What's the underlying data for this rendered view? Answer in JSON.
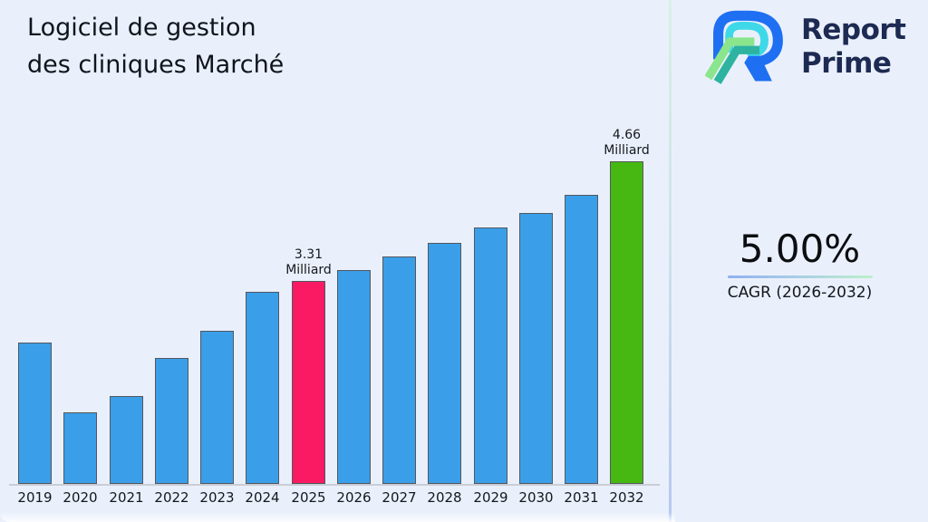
{
  "header": {
    "title_line1": "Logiciel de gestion",
    "title_line2": "des cliniques Marché"
  },
  "logo": {
    "name": "Report Prime",
    "line1": "Report",
    "line2": "Prime"
  },
  "cagr": {
    "value": "5.00%",
    "label": "CAGR (2026-2032)"
  },
  "colors": {
    "background": "#eaf0fb",
    "bar_default": "#3a9fe8",
    "bar_highlight_2025": "#fa1a63",
    "bar_highlight_2032": "#47b812",
    "bar_border": "#53575f",
    "logo_navy": "#1d2a52",
    "axis_line": "#c9cdd6"
  },
  "chart_data": {
    "type": "bar",
    "title": "Logiciel de gestion des cliniques Marché",
    "xlabel": "",
    "ylabel": "Milliard",
    "unit": "Milliard",
    "grid": false,
    "legend": false,
    "ylim": [
      1.02,
      5.11
    ],
    "categories": [
      "2019",
      "2020",
      "2021",
      "2022",
      "2023",
      "2024",
      "2025",
      "2026",
      "2027",
      "2028",
      "2029",
      "2030",
      "2031",
      "2032"
    ],
    "values": [
      2.61,
      1.83,
      2.01,
      2.44,
      2.75,
      3.19,
      3.31,
      3.43,
      3.59,
      3.74,
      3.91,
      4.08,
      4.28,
      4.66
    ],
    "highlight_colors": {
      "2025": "#fa1a63",
      "2032": "#47b812"
    },
    "annotations": [
      {
        "year": "2025",
        "line1": "3.31",
        "line2": "Milliard",
        "text": "3.31 Milliard"
      },
      {
        "year": "2032",
        "line1": "4.66",
        "line2": "Milliard",
        "text": "4.66 Milliard"
      }
    ]
  }
}
